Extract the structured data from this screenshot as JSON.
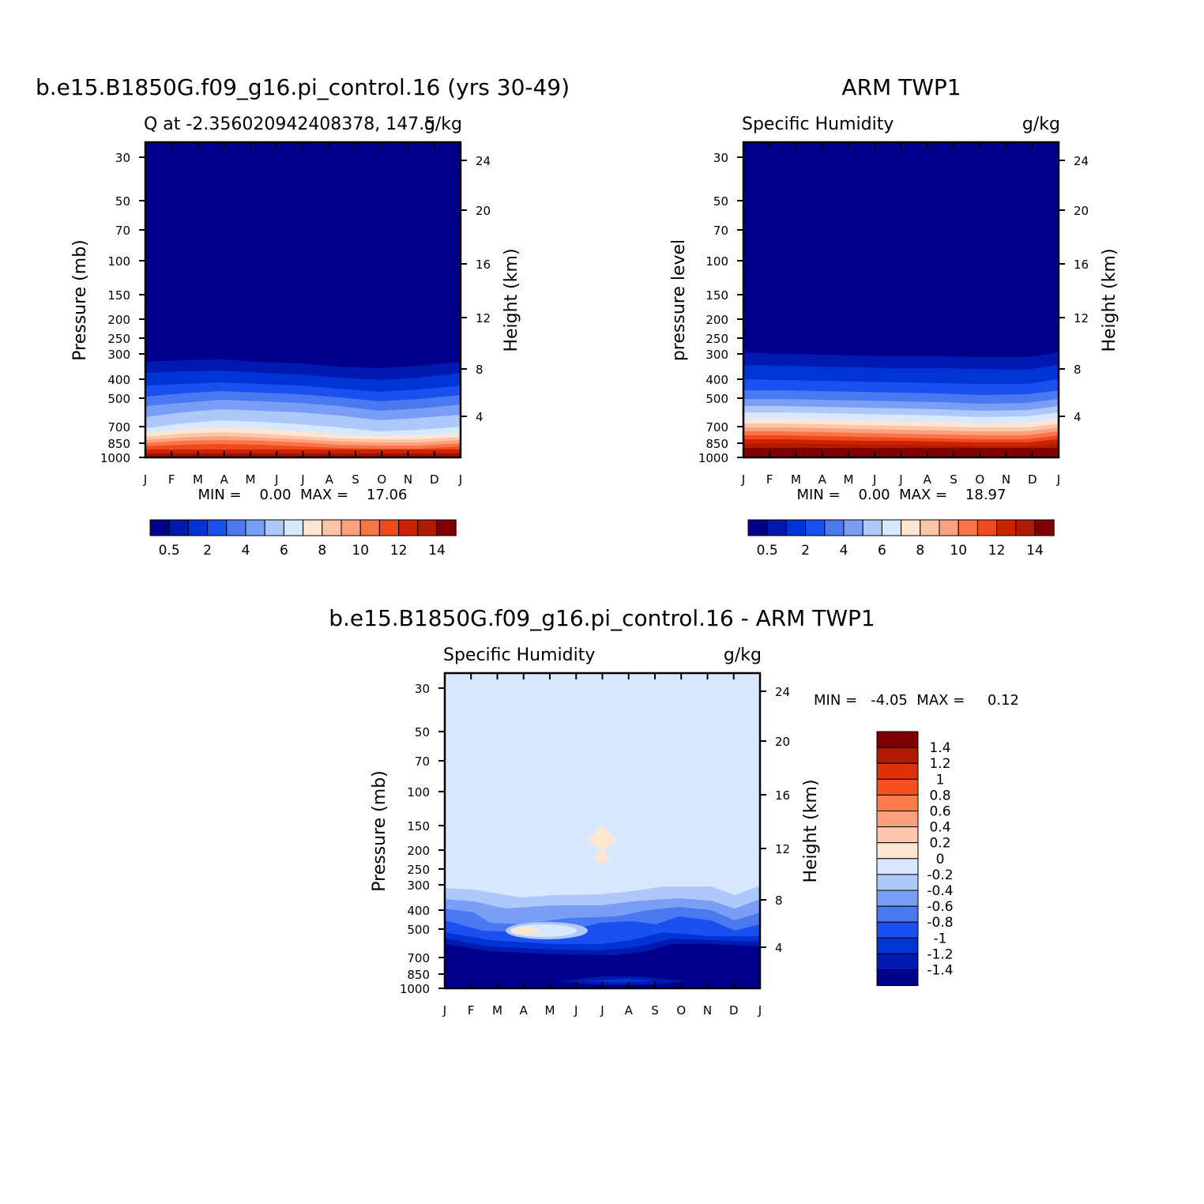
{
  "chart_data": [
    {
      "type": "heatmap",
      "title": "b.e15.B1850G.f09_g16.pi_control.16 (yrs 30-49)",
      "subtitle_left": "Q at -2.356020942408378, 147.5",
      "units": "g/kg",
      "ylabel_left": "Pressure (mb)",
      "ylabel_right": "Height (km)",
      "x": [
        "J",
        "F",
        "M",
        "A",
        "M",
        "J",
        "J",
        "A",
        "S",
        "O",
        "N",
        "D",
        "J"
      ],
      "pressure_ticks": [
        "30",
        "50",
        "70",
        "100",
        "150",
        "200",
        "250",
        "300",
        "400",
        "500",
        "700",
        "850",
        "1000"
      ],
      "height_ticks": [
        "24",
        "20",
        "16",
        "12",
        "8",
        "4"
      ],
      "stats": "MIN =    0.00  MAX =    17.06",
      "min": 0.0,
      "max": 17.06,
      "colorbar_labels": [
        "0.5",
        "2",
        "4",
        "6",
        "8",
        "10",
        "12",
        "14"
      ]
    },
    {
      "type": "heatmap",
      "title": "ARM TWP1",
      "subtitle_left": "Specific Humidity",
      "units": "g/kg",
      "ylabel_left": "pressure level",
      "ylabel_right": "Height (km)",
      "x": [
        "J",
        "F",
        "M",
        "A",
        "M",
        "J",
        "J",
        "A",
        "S",
        "O",
        "N",
        "D",
        "J"
      ],
      "pressure_ticks": [
        "30",
        "50",
        "70",
        "100",
        "150",
        "200",
        "250",
        "300",
        "400",
        "500",
        "700",
        "850",
        "1000"
      ],
      "height_ticks": [
        "24",
        "20",
        "16",
        "12",
        "8",
        "4"
      ],
      "stats": "MIN =    0.00  MAX =    18.97",
      "min": 0.0,
      "max": 18.97,
      "colorbar_labels": [
        "0.5",
        "2",
        "4",
        "6",
        "8",
        "10",
        "12",
        "14"
      ]
    },
    {
      "type": "heatmap",
      "title": "b.e15.B1850G.f09_g16.pi_control.16 - ARM TWP1",
      "subtitle_left": "Specific Humidity",
      "units": "g/kg",
      "ylabel_left": "Pressure (mb)",
      "ylabel_right": "Height (km)",
      "x": [
        "J",
        "F",
        "M",
        "A",
        "M",
        "J",
        "J",
        "A",
        "S",
        "O",
        "N",
        "D",
        "J"
      ],
      "pressure_ticks": [
        "30",
        "50",
        "70",
        "100",
        "150",
        "200",
        "250",
        "300",
        "400",
        "500",
        "700",
        "850",
        "1000"
      ],
      "height_ticks": [
        "24",
        "20",
        "16",
        "12",
        "8",
        "4"
      ],
      "stats": "MIN =   -4.05  MAX =     0.12",
      "min": -4.05,
      "max": 0.12,
      "colorbar_labels": [
        "1.4",
        "1.2",
        "1",
        "0.8",
        "0.6",
        "0.4",
        "0.2",
        "0",
        "-0.2",
        "-0.4",
        "-0.6",
        "-0.8",
        "-1",
        "-1.2",
        "-1.4"
      ]
    }
  ],
  "colors": {
    "scale": [
      "#00008b",
      "#0019b0",
      "#0033d6",
      "#1a4ff0",
      "#4a78f0",
      "#7a9ef5",
      "#aec8fa",
      "#d8e8fe",
      "#ffe6d2",
      "#fdc6a8",
      "#fca07e",
      "#fb7448",
      "#f04a1c",
      "#cc2200",
      "#b01a00",
      "#800000"
    ],
    "diff_scale": [
      "#800000",
      "#b01a00",
      "#e0320a",
      "#f85020",
      "#fc7c4c",
      "#fda07e",
      "#fec8ae",
      "#ffe6d2",
      "#d8e8fe",
      "#aec8fa",
      "#7a9ef5",
      "#4a78f0",
      "#1a4ff0",
      "#0033d6",
      "#0019b0",
      "#00008b"
    ]
  }
}
